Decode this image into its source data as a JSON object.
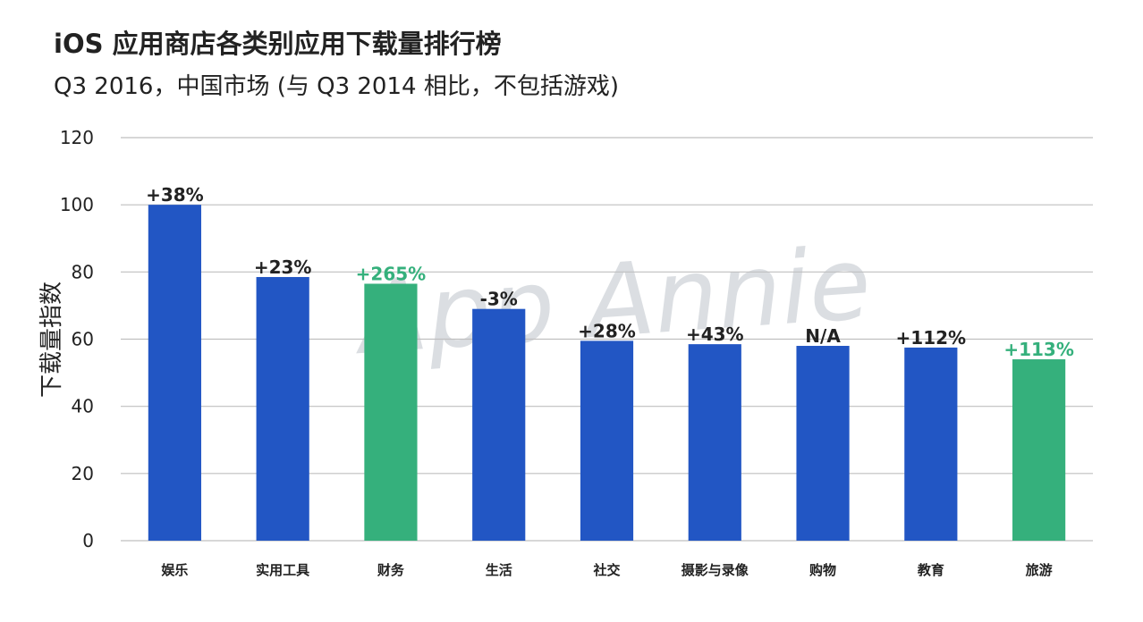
{
  "header": {
    "title": "iOS 应用商店各类别应用下载量排行榜",
    "subtitle": "Q3 2016，中国市场 (与 Q3 2014 相比，不包括游戏)"
  },
  "watermark": "App Annie",
  "colors": {
    "primary": "#2256c4",
    "highlight": "#35b07c",
    "label_default": "#222222",
    "label_highlight": "#35b07c",
    "grid": "#bfbfbf"
  },
  "chart_data": {
    "type": "bar",
    "title": "iOS 应用商店各类别应用下载量排行榜",
    "subtitle": "Q3 2016，中国市场 (与 Q3 2014 相比，不包括游戏)",
    "ylabel": "下载量指数",
    "xlabel": "",
    "ylim": [
      0,
      120
    ],
    "yticks": [
      0,
      20,
      40,
      60,
      80,
      100,
      120
    ],
    "grid": true,
    "categories": [
      "娱乐",
      "实用工具",
      "财务",
      "生活",
      "社交",
      "摄影与录像",
      "购物",
      "教育",
      "旅游"
    ],
    "values": [
      100,
      78.5,
      76.5,
      69,
      59.5,
      58.5,
      58,
      57.5,
      54
    ],
    "labels": [
      "+38%",
      "+23%",
      "+265%",
      "-3%",
      "+28%",
      "+43%",
      "N/A",
      "+112%",
      "+113%"
    ],
    "highlight": [
      false,
      false,
      true,
      false,
      false,
      false,
      false,
      false,
      true
    ]
  }
}
